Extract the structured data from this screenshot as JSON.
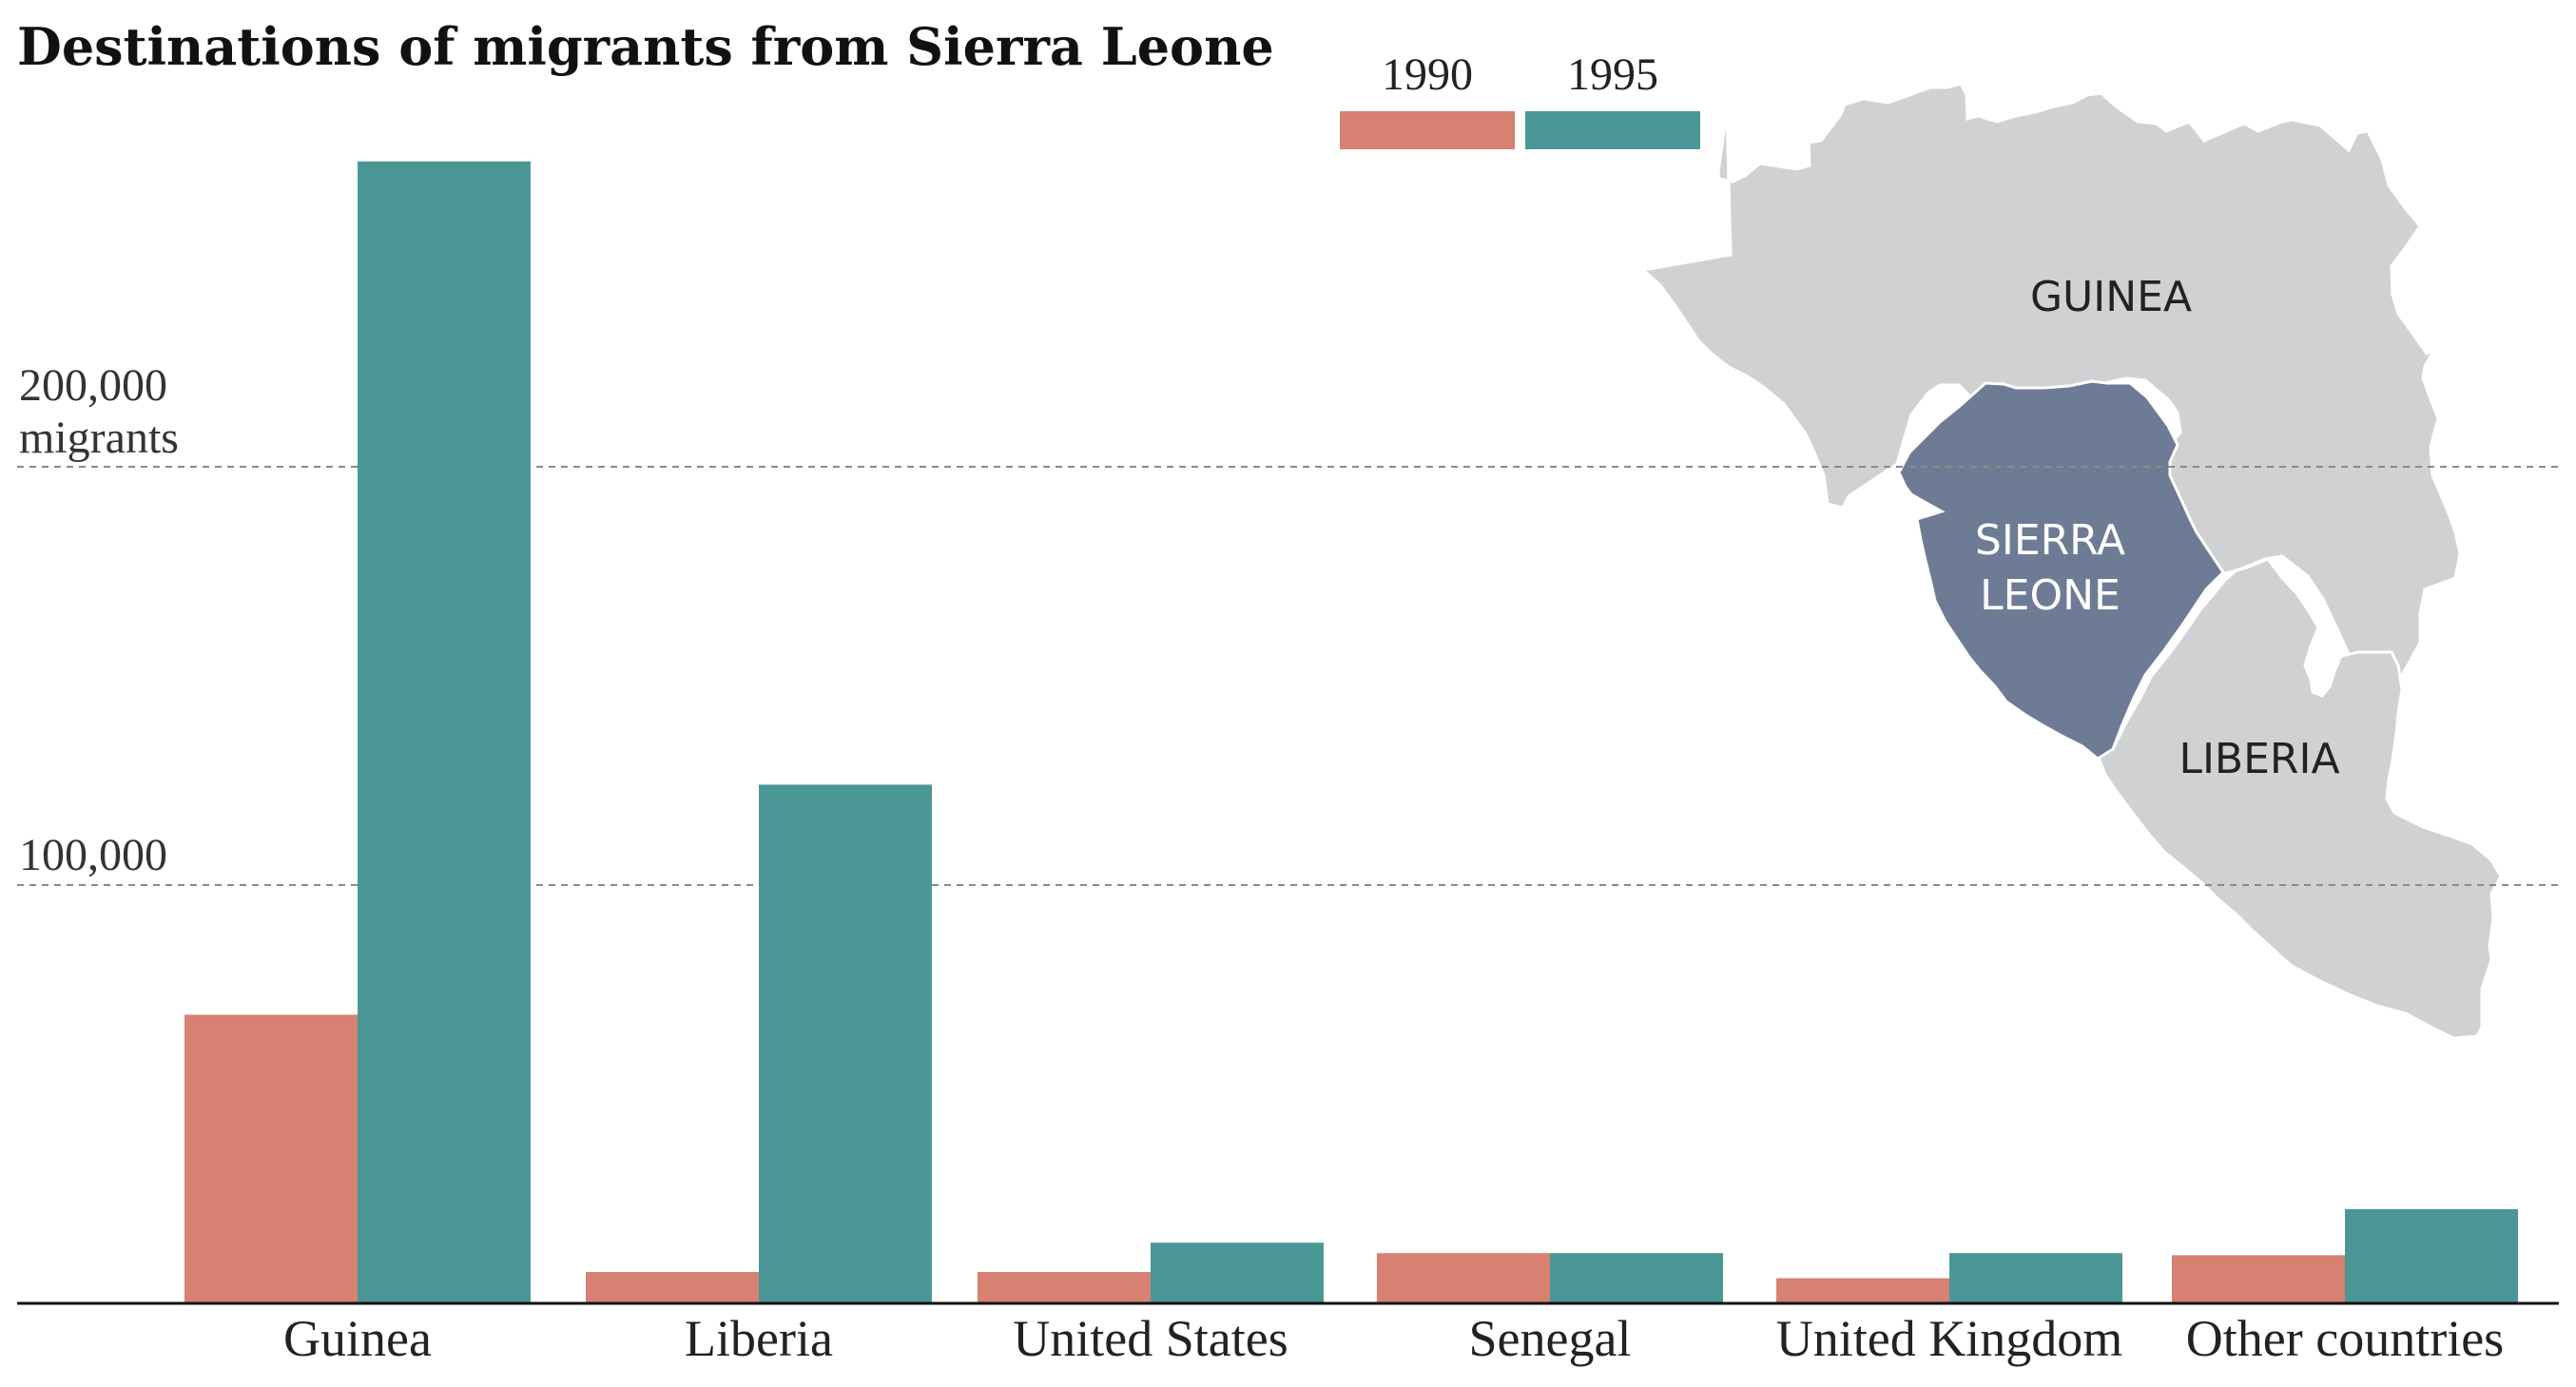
{
  "chart_data": {
    "type": "bar",
    "title": "Destinations of migrants from Sierra Leone",
    "categories": [
      "Guinea",
      "Liberia",
      "United States",
      "Senegal",
      "United Kingdom",
      "Other countries"
    ],
    "series": [
      {
        "name": "1990",
        "color": "#d68171",
        "values": [
          69000,
          7500,
          7500,
          12000,
          6000,
          11500
        ]
      },
      {
        "name": "1995",
        "color": "#4b9796",
        "values": [
          273000,
          124000,
          14500,
          12000,
          12000,
          22500
        ]
      }
    ],
    "y_ticks": [
      {
        "value": 100000,
        "label": "100,000",
        "unit": ""
      },
      {
        "value": 200000,
        "label": "200,000",
        "unit": "migrants"
      }
    ],
    "ylim": [
      0,
      290000
    ],
    "grid": true,
    "legend_position": "top-center",
    "xlabel": "",
    "ylabel": ""
  },
  "map": {
    "guinea_label": "GUINEA",
    "sierra_leone_label_line1": "SIERRA",
    "sierra_leone_label_line2": "LEONE",
    "liberia_label": "LIBERIA",
    "highlight_color": "#6e7b94",
    "neighbor_color": "#d0d1d3"
  }
}
